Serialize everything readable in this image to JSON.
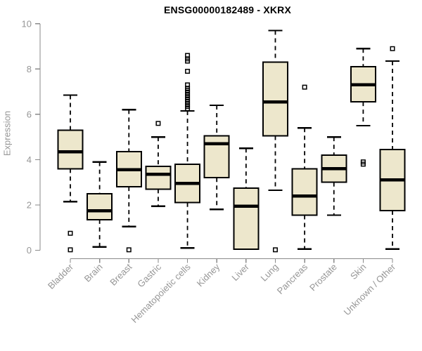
{
  "colors": {
    "box_fill": "#EDE7CC",
    "box_border": "#000000",
    "median": "#000000",
    "whisker": "#000000",
    "axis": "#8a8a8a",
    "tick_text": "#969696",
    "title_text": "#000000",
    "background": "#ffffff"
  },
  "chart_data": {
    "type": "boxplot",
    "title": "ENSG00000182489 - XKRX",
    "ylabel": "Expression",
    "xlabel": "",
    "ylim": [
      0,
      10
    ],
    "yticks": [
      0,
      2,
      4,
      6,
      8,
      10
    ],
    "grid": false,
    "legend": false,
    "x_label_rotation_deg": 45,
    "categories": [
      "Bladder",
      "Brain",
      "Breast",
      "Gastric",
      "Hematopoietic cells",
      "Kidney",
      "Liver",
      "Lung",
      "Pancreas",
      "Prostate",
      "Skin",
      "Unknown / Other"
    ],
    "boxes": [
      {
        "category": "Bladder",
        "whisker_low": 2.15,
        "q1": 3.6,
        "median": 4.35,
        "q3": 5.3,
        "whisker_high": 6.85,
        "outliers": [
          0.75,
          0.02
        ]
      },
      {
        "category": "Brain",
        "whisker_low": 0.15,
        "q1": 1.35,
        "median": 1.75,
        "q3": 2.5,
        "whisker_high": 3.9,
        "outliers": []
      },
      {
        "category": "Breast",
        "whisker_low": 1.05,
        "q1": 2.8,
        "median": 3.55,
        "q3": 4.35,
        "whisker_high": 6.2,
        "outliers": [
          0.02
        ]
      },
      {
        "category": "Gastric",
        "whisker_low": 1.95,
        "q1": 2.7,
        "median": 3.35,
        "q3": 3.7,
        "whisker_high": 5.0,
        "outliers": [
          5.6
        ]
      },
      {
        "category": "Hematopoietic cells",
        "whisker_low": 0.1,
        "q1": 2.1,
        "median": 2.95,
        "q3": 3.8,
        "whisker_high": 6.15,
        "outliers": [
          6.25,
          6.35,
          6.45,
          6.55,
          6.65,
          6.75,
          6.85,
          6.95,
          7.05,
          7.15,
          7.3,
          7.9,
          8.35,
          8.45,
          8.6
        ]
      },
      {
        "category": "Kidney",
        "whisker_low": 1.8,
        "q1": 3.2,
        "median": 4.7,
        "q3": 5.05,
        "whisker_high": 6.4,
        "outliers": []
      },
      {
        "category": "Liver",
        "whisker_low": 0.05,
        "q1": 0.05,
        "median": 1.95,
        "q3": 2.75,
        "whisker_high": 4.5,
        "outliers": []
      },
      {
        "category": "Lung",
        "whisker_low": 2.65,
        "q1": 5.05,
        "median": 6.55,
        "q3": 8.3,
        "whisker_high": 9.7,
        "outliers": [
          0.02
        ]
      },
      {
        "category": "Pancreas",
        "whisker_low": 0.05,
        "q1": 1.55,
        "median": 2.4,
        "q3": 3.6,
        "whisker_high": 5.4,
        "outliers": [
          7.2
        ]
      },
      {
        "category": "Prostate",
        "whisker_low": 1.55,
        "q1": 3.0,
        "median": 3.6,
        "q3": 4.2,
        "whisker_high": 5.0,
        "outliers": []
      },
      {
        "category": "Skin",
        "whisker_low": 5.5,
        "q1": 6.55,
        "median": 7.3,
        "q3": 8.1,
        "whisker_high": 8.9,
        "outliers": [
          3.8,
          3.9
        ]
      },
      {
        "category": "Unknown / Other",
        "whisker_low": 0.05,
        "q1": 1.75,
        "median": 3.1,
        "q3": 4.45,
        "whisker_high": 8.35,
        "outliers": [
          8.9
        ]
      }
    ]
  }
}
